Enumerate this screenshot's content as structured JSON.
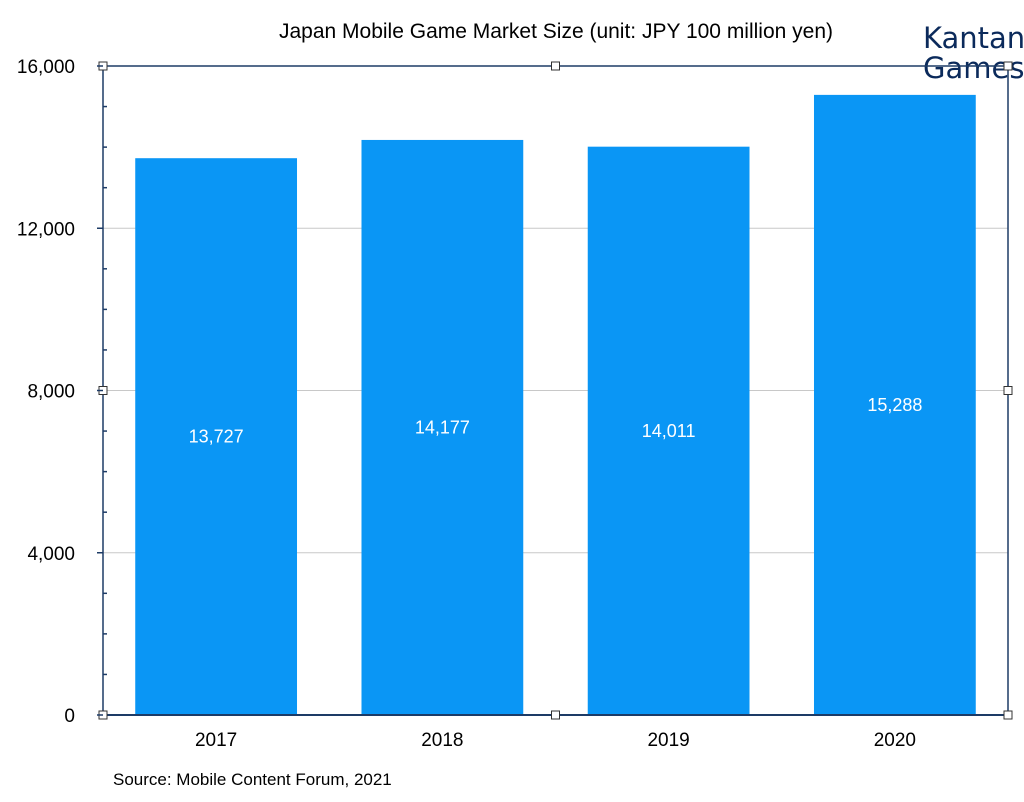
{
  "chart_data": {
    "type": "bar",
    "title": "Japan Mobile Game Market Size (unit: JPY 100 million yen)",
    "categories": [
      "2017",
      "2018",
      "2019",
      "2020"
    ],
    "values": [
      13727,
      14177,
      14011,
      15288
    ],
    "data_labels": [
      "13,727",
      "14,177",
      "14,011",
      "15,288"
    ],
    "yticks": [
      {
        "value": 0,
        "label": "0"
      },
      {
        "value": 4000,
        "label": "4,000"
      },
      {
        "value": 8000,
        "label": "8,000"
      },
      {
        "value": 12000,
        "label": "12,000"
      },
      {
        "value": 16000,
        "label": "16,000"
      }
    ],
    "ylim": [
      0,
      16000
    ],
    "grid": true,
    "bar_color": "#0a96f5",
    "xlabel": "",
    "ylabel": ""
  },
  "source": "Source: Mobile Content Forum, 2021",
  "logo": {
    "line1": "Kantan",
    "line2": "Games",
    "color": "#0b2a5b"
  }
}
